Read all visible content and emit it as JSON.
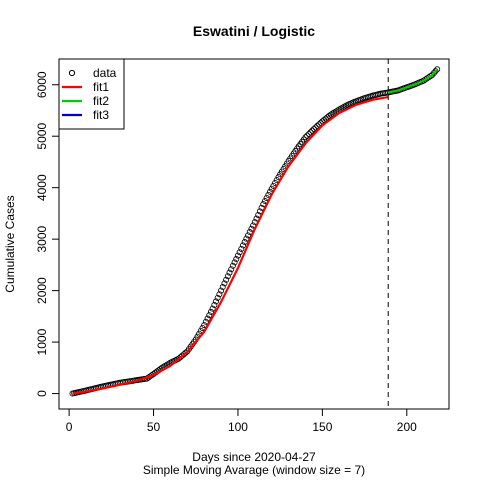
{
  "chart_data": {
    "type": "scatter",
    "title": "Eswatini / Logistic",
    "xlabel": "Days since 2020-04-27",
    "subtitle": "Simple Moving Avarage (window size = 7)",
    "ylabel": "Cumulative Cases",
    "xlim": [
      -6,
      225
    ],
    "ylim": [
      -300,
      6500
    ],
    "xticks": [
      0,
      50,
      100,
      150,
      200
    ],
    "yticks": [
      0,
      1000,
      2000,
      3000,
      4000,
      5000,
      6000
    ],
    "cutoff_x": 189,
    "legend": {
      "placement": "top-left",
      "entries": [
        {
          "label": "data",
          "symbol": "circle",
          "color": "#000000"
        },
        {
          "label": "fit1",
          "symbol": "line",
          "color": "#ff0000"
        },
        {
          "label": "fit2",
          "symbol": "line",
          "color": "#00cc00"
        },
        {
          "label": "fit3",
          "symbol": "line",
          "color": "#0000cc"
        }
      ]
    },
    "data_curve": {
      "x": [
        2,
        10,
        20,
        30,
        40,
        46,
        50,
        55,
        60,
        65,
        70,
        75,
        80,
        85,
        90,
        95,
        100,
        105,
        110,
        115,
        120,
        125,
        130,
        135,
        140,
        145,
        150,
        155,
        160,
        165,
        170,
        175,
        180,
        185,
        189,
        195,
        200,
        205,
        210,
        215,
        218
      ],
      "y": [
        0,
        60,
        140,
        210,
        260,
        290,
        380,
        500,
        600,
        680,
        820,
        1050,
        1330,
        1650,
        2000,
        2350,
        2680,
        3010,
        3330,
        3680,
        3980,
        4260,
        4520,
        4760,
        4980,
        5140,
        5290,
        5420,
        5520,
        5610,
        5680,
        5740,
        5790,
        5830,
        5850,
        5890,
        5950,
        6010,
        6080,
        6190,
        6300
      ]
    },
    "series": [
      {
        "name": "fit1",
        "color": "#ff0000",
        "x": [
          2,
          10,
          20,
          30,
          40,
          50,
          60,
          70,
          80,
          90,
          100,
          110,
          120,
          130,
          140,
          150,
          160,
          170,
          180,
          189
        ],
        "y": [
          0,
          40,
          100,
          170,
          250,
          360,
          540,
          810,
          1200,
          1780,
          2440,
          3200,
          3870,
          4420,
          4860,
          5210,
          5450,
          5610,
          5710,
          5760
        ]
      },
      {
        "name": "fit2",
        "color": "#00cc00",
        "x": [
          189,
          195,
          200,
          205,
          210,
          215,
          218
        ],
        "y": [
          5850,
          5890,
          5950,
          6010,
          6080,
          6190,
          6300
        ]
      }
    ]
  }
}
